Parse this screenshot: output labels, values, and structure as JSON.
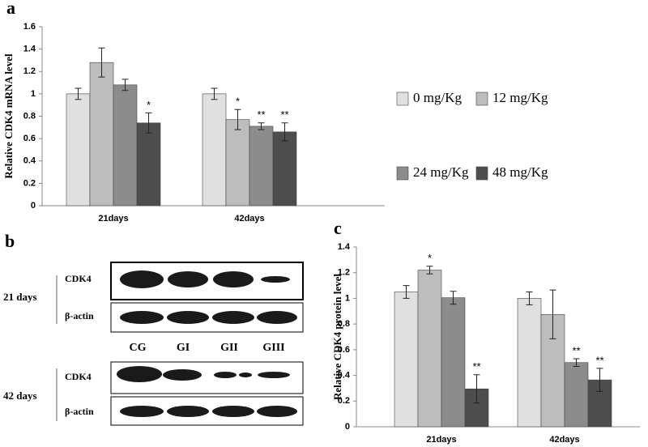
{
  "chart_data": [
    {
      "type": "bar",
      "panel": "a",
      "ylabel": "Relative CDK4 mRNA level",
      "categories": [
        "21days",
        "42days"
      ],
      "ylim": [
        0,
        1.6
      ],
      "yticks": [
        0,
        0.2,
        0.4,
        0.6,
        0.8,
        1,
        1.2,
        1.4,
        1.6
      ],
      "legend": "right",
      "series": [
        {
          "name": "0 mg/Kg",
          "color": "#e0e0e0",
          "values": [
            1.0,
            1.0
          ],
          "errors": [
            0.05,
            0.05
          ],
          "significance": [
            null,
            null
          ]
        },
        {
          "name": "12 mg/Kg",
          "color": "#bdbdbd",
          "values": [
            1.28,
            0.77
          ],
          "errors": [
            0.13,
            0.09
          ],
          "significance": [
            null,
            "*"
          ]
        },
        {
          "name": "24 mg/Kg",
          "color": "#8c8c8c",
          "values": [
            1.08,
            0.71
          ],
          "errors": [
            0.05,
            0.03
          ],
          "significance": [
            null,
            "**"
          ]
        },
        {
          "name": "48 mg/Kg",
          "color": "#4d4d4d",
          "values": [
            0.74,
            0.66
          ],
          "errors": [
            0.09,
            0.08
          ],
          "significance": [
            "*",
            "**"
          ]
        }
      ]
    },
    {
      "type": "bar",
      "panel": "c",
      "ylabel": "Relative CDK4 protein level",
      "categories": [
        "21days",
        "42days"
      ],
      "ylim": [
        0,
        1.4
      ],
      "yticks": [
        0,
        0.2,
        0.4,
        0.6,
        0.8,
        1,
        1.2,
        1.4
      ],
      "series": [
        {
          "color": "#e0e0e0",
          "values": [
            1.05,
            1.0
          ],
          "errors": [
            0.05,
            0.05
          ],
          "significance": [
            null,
            null
          ]
        },
        {
          "color": "#bdbdbd",
          "values": [
            1.22,
            0.875
          ],
          "errors": [
            0.03,
            0.19
          ],
          "significance": [
            "*",
            null
          ]
        },
        {
          "color": "#8c8c8c",
          "values": [
            1.005,
            0.5
          ],
          "errors": [
            0.05,
            0.03
          ],
          "significance": [
            null,
            "**"
          ]
        },
        {
          "color": "#4d4d4d",
          "values": [
            0.295,
            0.365
          ],
          "errors": [
            0.11,
            0.09
          ],
          "significance": [
            "**",
            "**"
          ]
        }
      ]
    }
  ],
  "blot": {
    "panel": "b",
    "groups": [
      "21 days",
      "42 days"
    ],
    "rows": [
      "CDK4",
      "β-actin"
    ],
    "lanes": [
      "CG",
      "GI",
      "GII",
      "GIII"
    ]
  }
}
